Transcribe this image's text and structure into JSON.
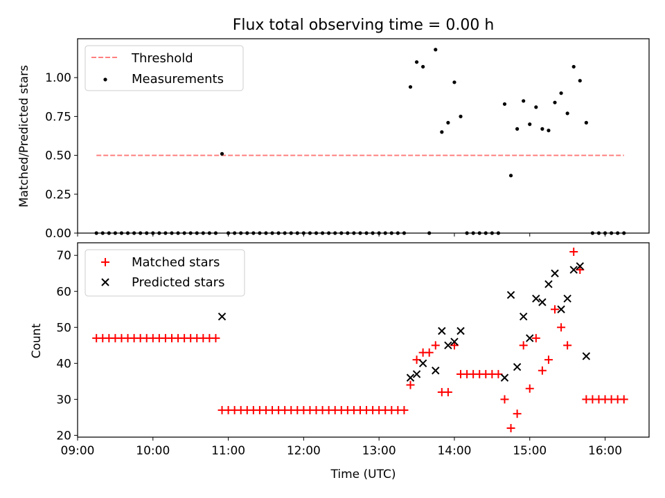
{
  "figure": {
    "title": "Flux total observing time = 0.00 h",
    "xlabel": "Time (UTC)"
  },
  "colors": {
    "threshold": "#ff7f7f",
    "measurements": "#000000",
    "matched": "#ff0000",
    "predicted": "#000000"
  },
  "chart_data": [
    {
      "type": "scatter",
      "ylabel": "Matched/Predicted stars",
      "xlim": [
        "09:00",
        "16:35"
      ],
      "ylim": [
        0,
        1.25
      ],
      "yticks": [
        "0.00",
        "0.25",
        "0.50",
        "0.75",
        "1.00"
      ],
      "yticks_values": [
        0,
        0.25,
        0.5,
        0.75,
        1.0
      ],
      "legend_position": "top-left",
      "legend": [
        "Threshold",
        "Measurements"
      ],
      "threshold": {
        "name": "Threshold",
        "value": 0.5,
        "x_range": [
          "09:15",
          "16:15"
        ],
        "style": "dashed"
      },
      "series": [
        {
          "name": "Measurements",
          "marker": "dot",
          "x": [
            "09:15",
            "09:20",
            "09:25",
            "09:30",
            "09:35",
            "09:40",
            "09:45",
            "09:50",
            "09:55",
            "10:00",
            "10:05",
            "10:10",
            "10:15",
            "10:20",
            "10:25",
            "10:30",
            "10:35",
            "10:40",
            "10:45",
            "10:50",
            "10:55",
            "11:00",
            "11:05",
            "11:10",
            "11:15",
            "11:20",
            "11:25",
            "11:30",
            "11:35",
            "11:40",
            "11:45",
            "11:50",
            "11:55",
            "12:00",
            "12:05",
            "12:10",
            "12:15",
            "12:20",
            "12:25",
            "12:30",
            "12:35",
            "12:40",
            "12:45",
            "12:50",
            "12:55",
            "13:00",
            "13:05",
            "13:10",
            "13:15",
            "13:20",
            "13:25",
            "13:30",
            "13:35",
            "13:40",
            "13:45",
            "13:50",
            "13:55",
            "14:00",
            "14:05",
            "14:10",
            "14:15",
            "14:20",
            "14:25",
            "14:30",
            "14:35",
            "14:40",
            "14:45",
            "14:50",
            "14:55",
            "15:00",
            "15:05",
            "15:10",
            "15:15",
            "15:20",
            "15:25",
            "15:30",
            "15:35",
            "15:40",
            "15:45",
            "15:50",
            "15:55",
            "16:00",
            "16:05",
            "16:10",
            "16:15"
          ],
          "y": [
            0,
            0,
            0,
            0,
            0,
            0,
            0,
            0,
            0,
            0,
            0,
            0,
            0,
            0,
            0,
            0,
            0,
            0,
            0,
            0,
            0.51,
            0,
            0,
            0,
            0,
            0,
            0,
            0,
            0,
            0,
            0,
            0,
            0,
            0,
            0,
            0,
            0,
            0,
            0,
            0,
            0,
            0,
            0,
            0,
            0,
            0,
            0,
            0,
            0,
            0,
            0.94,
            1.1,
            1.07,
            0,
            1.18,
            0.65,
            0.71,
            0.97,
            0.75,
            0,
            0,
            0,
            0,
            0,
            0,
            0.83,
            0.37,
            0.67,
            0.85,
            0.7,
            0.81,
            0.67,
            0.66,
            0.84,
            0.9,
            0.77,
            1.07,
            0.98,
            0.71,
            0,
            0,
            0,
            0,
            0,
            0
          ]
        }
      ]
    },
    {
      "type": "scatter",
      "ylabel": "Count",
      "xlim": [
        "09:00",
        "16:35"
      ],
      "ylim": [
        19.5,
        73.5
      ],
      "yticks": [
        "20",
        "30",
        "40",
        "50",
        "60",
        "70"
      ],
      "yticks_values": [
        20,
        30,
        40,
        50,
        60,
        70
      ],
      "xticks": [
        "09:00",
        "10:00",
        "11:00",
        "12:00",
        "13:00",
        "14:00",
        "15:00",
        "16:00"
      ],
      "legend_position": "top-left",
      "legend": [
        "Matched stars",
        "Predicted stars"
      ],
      "series": [
        {
          "name": "Matched stars",
          "marker": "plus",
          "x": [
            "09:15",
            "09:20",
            "09:25",
            "09:30",
            "09:35",
            "09:40",
            "09:45",
            "09:50",
            "09:55",
            "10:00",
            "10:05",
            "10:10",
            "10:15",
            "10:20",
            "10:25",
            "10:30",
            "10:35",
            "10:40",
            "10:45",
            "10:50",
            "10:55",
            "11:00",
            "11:05",
            "11:10",
            "11:15",
            "11:20",
            "11:25",
            "11:30",
            "11:35",
            "11:40",
            "11:45",
            "11:50",
            "11:55",
            "12:00",
            "12:05",
            "12:10",
            "12:15",
            "12:20",
            "12:25",
            "12:30",
            "12:35",
            "12:40",
            "12:45",
            "12:50",
            "12:55",
            "13:00",
            "13:05",
            "13:10",
            "13:15",
            "13:20",
            "13:25",
            "13:30",
            "13:35",
            "13:40",
            "13:45",
            "13:50",
            "13:55",
            "14:00",
            "14:05",
            "14:10",
            "14:15",
            "14:20",
            "14:25",
            "14:30",
            "14:35",
            "14:40",
            "14:45",
            "14:50",
            "14:55",
            "15:00",
            "15:05",
            "15:10",
            "15:15",
            "15:20",
            "15:25",
            "15:30",
            "15:35",
            "15:40",
            "15:45",
            "15:50",
            "15:55",
            "16:00",
            "16:05",
            "16:10",
            "16:15"
          ],
          "y": [
            47,
            47,
            47,
            47,
            47,
            47,
            47,
            47,
            47,
            47,
            47,
            47,
            47,
            47,
            47,
            47,
            47,
            47,
            47,
            47,
            27,
            27,
            27,
            27,
            27,
            27,
            27,
            27,
            27,
            27,
            27,
            27,
            27,
            27,
            27,
            27,
            27,
            27,
            27,
            27,
            27,
            27,
            27,
            27,
            27,
            27,
            27,
            27,
            27,
            27,
            34,
            41,
            43,
            43,
            45,
            32,
            32,
            45,
            37,
            37,
            37,
            37,
            37,
            37,
            37,
            30,
            22,
            26,
            45,
            33,
            47,
            38,
            41,
            55,
            50,
            45,
            71,
            66,
            30,
            30,
            30,
            30,
            30,
            30,
            30
          ]
        },
        {
          "name": "Predicted stars",
          "marker": "x",
          "x": [
            "10:55",
            "13:25",
            "13:30",
            "13:35",
            "13:45",
            "13:50",
            "13:55",
            "14:00",
            "14:05",
            "14:40",
            "14:45",
            "14:50",
            "14:55",
            "15:00",
            "15:05",
            "15:10",
            "15:15",
            "15:20",
            "15:25",
            "15:30",
            "15:35",
            "15:40",
            "15:45"
          ],
          "y": [
            53,
            36,
            37,
            40,
            38,
            49,
            45,
            46,
            49,
            36,
            59,
            39,
            53,
            47,
            58,
            57,
            62,
            65,
            55,
            58,
            66,
            67,
            42
          ]
        }
      ]
    }
  ]
}
